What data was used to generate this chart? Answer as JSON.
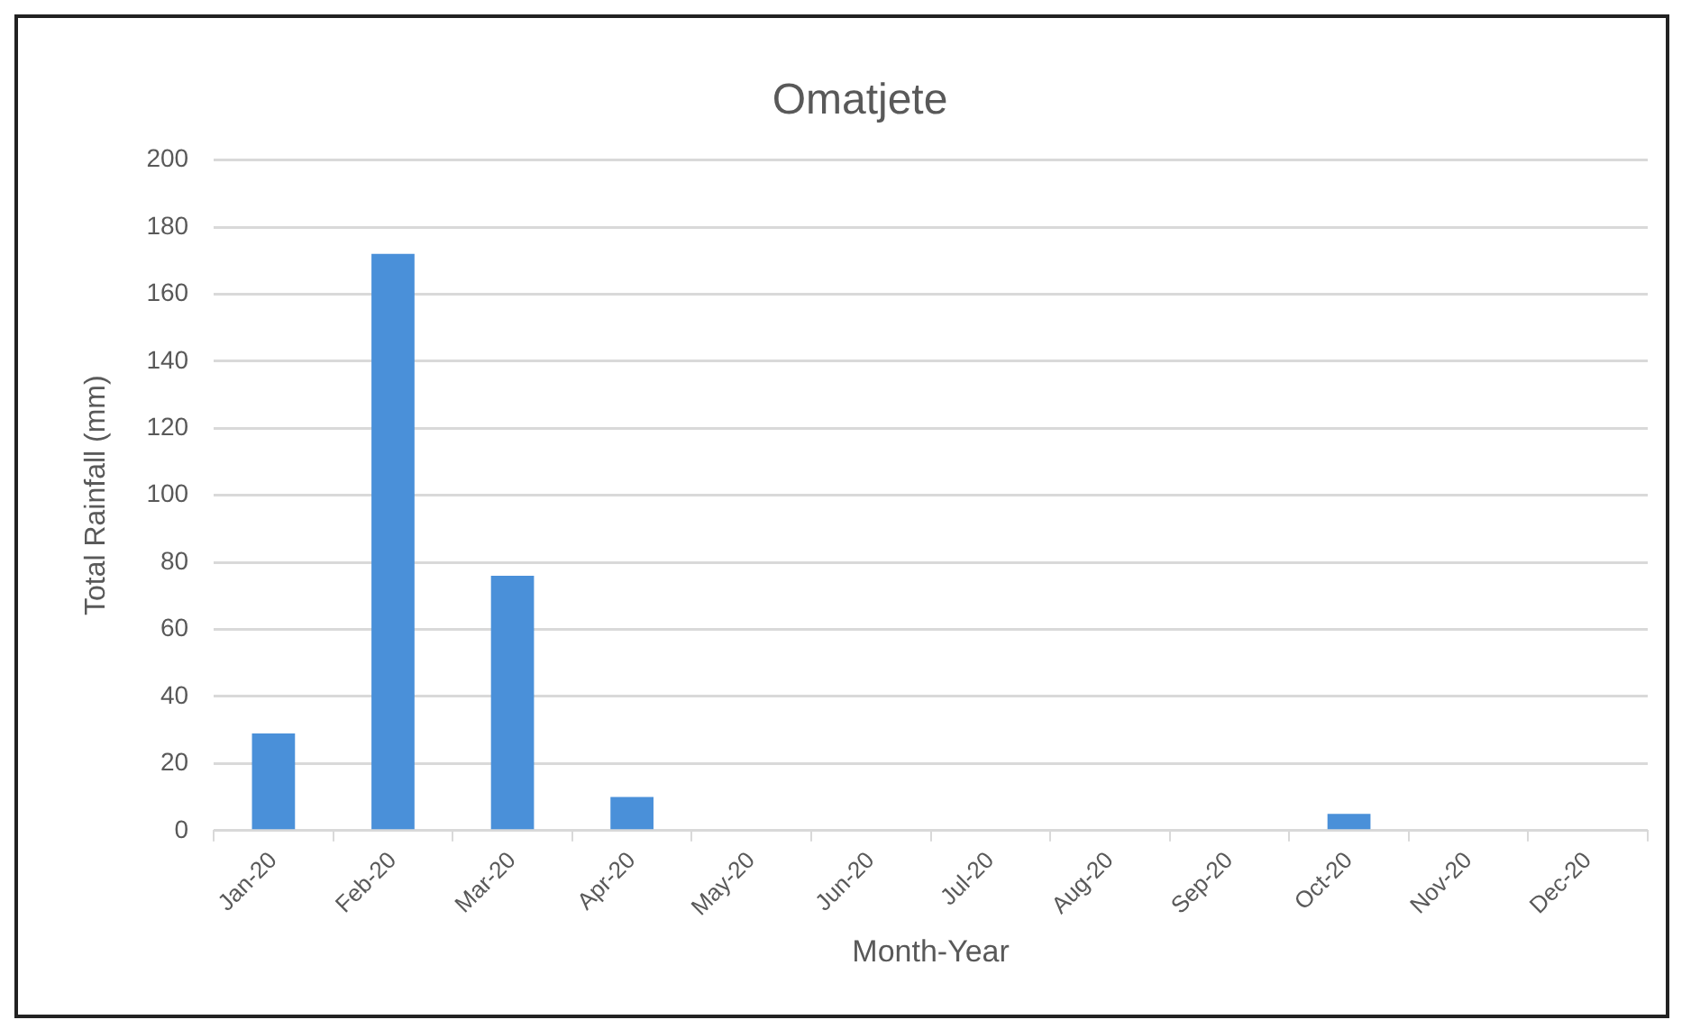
{
  "chart_data": {
    "type": "bar",
    "title": "Omatjete",
    "xlabel": "Month-Year",
    "ylabel": "Total Rainfall (mm)",
    "categories": [
      "Jan-20",
      "Feb-20",
      "Mar-20",
      "Apr-20",
      "May-20",
      "Jun-20",
      "Jul-20",
      "Aug-20",
      "Sep-20",
      "Oct-20",
      "Nov-20",
      "Dec-20"
    ],
    "values": [
      29,
      172,
      76,
      10,
      0,
      0,
      0,
      0,
      0,
      5,
      0,
      0
    ],
    "color": "#4a90d9",
    "ylim": [
      0,
      200
    ],
    "yticks": [
      0,
      20,
      40,
      60,
      80,
      100,
      120,
      140,
      160,
      180,
      200
    ],
    "grid": "y",
    "legend": false
  }
}
